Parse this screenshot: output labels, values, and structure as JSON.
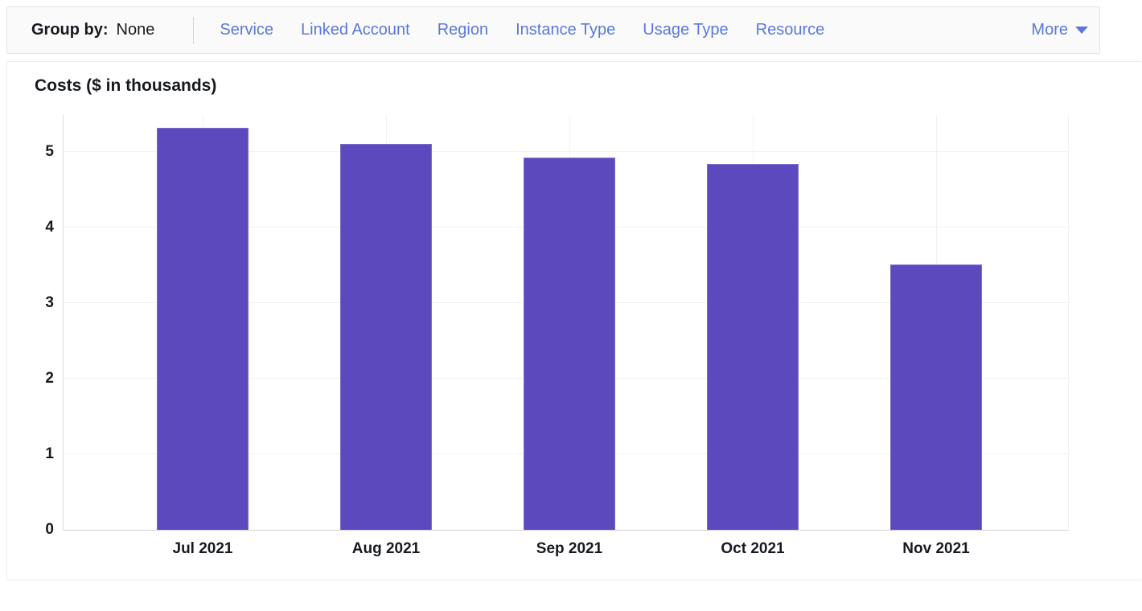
{
  "toolbar": {
    "group_by_label": "Group by:",
    "group_by_value": "None",
    "links": [
      "Service",
      "Linked Account",
      "Region",
      "Instance Type",
      "Usage Type",
      "Resource"
    ],
    "more_label": "More",
    "more_icon": "caret-down-icon"
  },
  "chart_data": {
    "type": "bar",
    "title": "Costs ($ in thousands)",
    "categories": [
      "Jul 2021",
      "Aug 2021",
      "Sep 2021",
      "Oct 2021",
      "Nov 2021"
    ],
    "values": [
      5.32,
      5.11,
      4.93,
      4.84,
      3.51
    ],
    "xlabel": "",
    "ylabel": "Costs ($ in thousands)",
    "ylim": [
      0,
      5.5
    ],
    "yticks": [
      0,
      1,
      2,
      3,
      4,
      5
    ],
    "grid": true,
    "legend": "none",
    "bar_color": "#5c49be"
  },
  "colors": {
    "bar_fill": "#5c49be",
    "bar_border": "#7d6bcb",
    "link_blue": "#5a78dd",
    "text_dark": "#16191f",
    "gridline": "#f2f2f2",
    "axis_line": "#ced3d3",
    "card_border": "#e2e5e5",
    "toolbar_bg": "#fafafa"
  }
}
